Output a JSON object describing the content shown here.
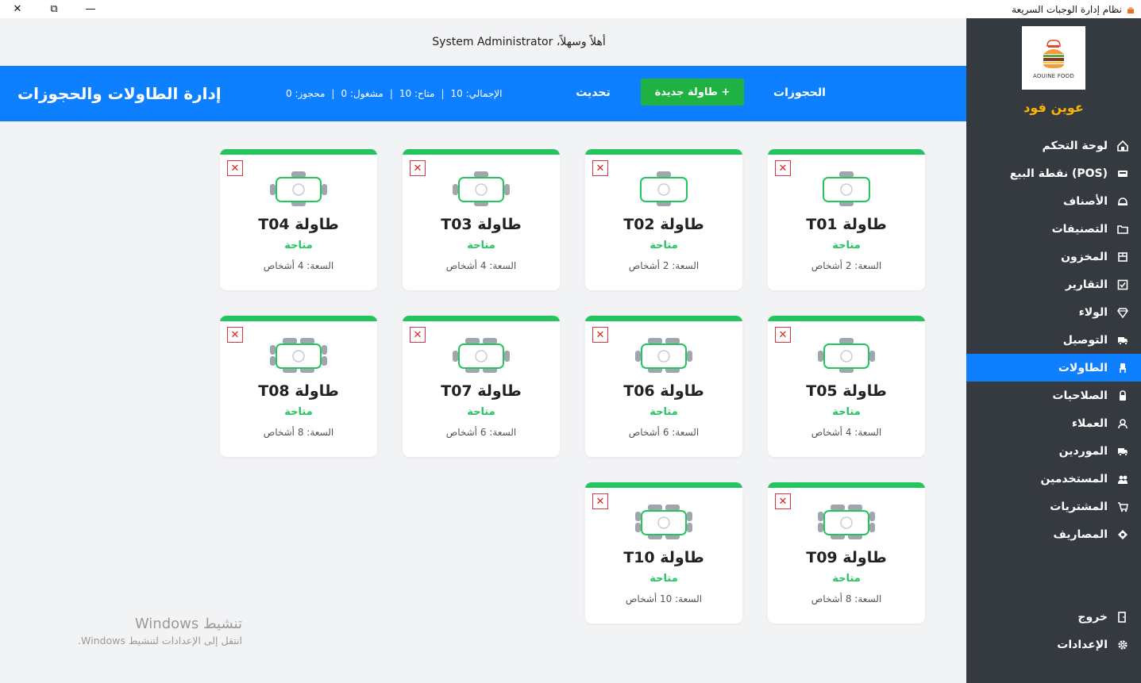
{
  "window": {
    "title": "نظام إدارة الوجبات السريعة",
    "close_glyph": "✕",
    "maximize_glyph": "⧉",
    "minimize_glyph": "—"
  },
  "sidebar": {
    "logo_text": "AOUINE FOOD",
    "brand": "عوين فود",
    "items": [
      {
        "label": "لوحة التحكم",
        "icon": "home-icon",
        "active": false
      },
      {
        "label": "نقطة البيع (POS)",
        "icon": "register-icon",
        "active": false
      },
      {
        "label": "الأصناف",
        "icon": "dish-icon",
        "active": false
      },
      {
        "label": "التصنيفات",
        "icon": "folder-icon",
        "active": false
      },
      {
        "label": "المخزون",
        "icon": "box-icon",
        "active": false
      },
      {
        "label": "التقارير",
        "icon": "check-square-icon",
        "active": false
      },
      {
        "label": "الولاء",
        "icon": "gem-icon",
        "active": false
      },
      {
        "label": "التوصيل",
        "icon": "truck-icon",
        "active": false
      },
      {
        "label": "الطاولات",
        "icon": "chair-icon",
        "active": true
      },
      {
        "label": "الصلاحيات",
        "icon": "lock-icon",
        "active": false
      },
      {
        "label": "العملاء",
        "icon": "user-icon",
        "active": false
      },
      {
        "label": "الموردين",
        "icon": "truck-icon",
        "active": false
      },
      {
        "label": "المستخدمين",
        "icon": "users-icon",
        "active": false
      },
      {
        "label": "المشتريات",
        "icon": "cart-icon",
        "active": false
      },
      {
        "label": "المصاريف",
        "icon": "money-icon",
        "active": false
      }
    ],
    "bottom_items": [
      {
        "label": "خروج",
        "icon": "logout-icon"
      },
      {
        "label": "الإعدادات",
        "icon": "gear-icon"
      }
    ]
  },
  "header": {
    "welcome": "أهلاً وسهلاً، System Administrator",
    "page_title": "إدارة الطاولات والحجوزات",
    "stats": {
      "total": "الإجمالي: 10",
      "available": "متاح: 10",
      "occupied": "مشغول: 0",
      "reserved": "محجوز: 0"
    },
    "refresh_label": "تحديث",
    "new_table_label": "+ طاولة جديدة",
    "reservations_label": "الحجوزات"
  },
  "tables": [
    {
      "name": "طاولة T01",
      "status": "متاحة",
      "capacity": "السعة: 2 أشخاص",
      "seats": 2
    },
    {
      "name": "طاولة T02",
      "status": "متاحة",
      "capacity": "السعة: 2 أشخاص",
      "seats": 2
    },
    {
      "name": "طاولة T03",
      "status": "متاحة",
      "capacity": "السعة: 4 أشخاص",
      "seats": 4
    },
    {
      "name": "طاولة T04",
      "status": "متاحة",
      "capacity": "السعة: 4 أشخاص",
      "seats": 4
    },
    {
      "name": "طاولة T05",
      "status": "متاحة",
      "capacity": "السعة: 4 أشخاص",
      "seats": 4
    },
    {
      "name": "طاولة T06",
      "status": "متاحة",
      "capacity": "السعة: 6 أشخاص",
      "seats": 6
    },
    {
      "name": "طاولة T07",
      "status": "متاحة",
      "capacity": "السعة: 6 أشخاص",
      "seats": 6
    },
    {
      "name": "طاولة T08",
      "status": "متاحة",
      "capacity": "السعة: 8 أشخاص",
      "seats": 8
    },
    {
      "name": "طاولة T09",
      "status": "متاحة",
      "capacity": "السعة: 8 أشخاص",
      "seats": 8
    },
    {
      "name": "طاولة T10",
      "status": "متاحة",
      "capacity": "السعة: 10 أشخاص",
      "seats": 10
    }
  ],
  "watermark": {
    "line1": "تنشيط Windows",
    "line2": "انتقل إلى الإعدادات لتنشيط Windows."
  },
  "colors": {
    "primary": "#0d7fff",
    "sidebar": "#353a41",
    "available": "#22c55e",
    "brand": "#f7b500",
    "new_button": "#1fb141",
    "delete": "#dd2222"
  }
}
